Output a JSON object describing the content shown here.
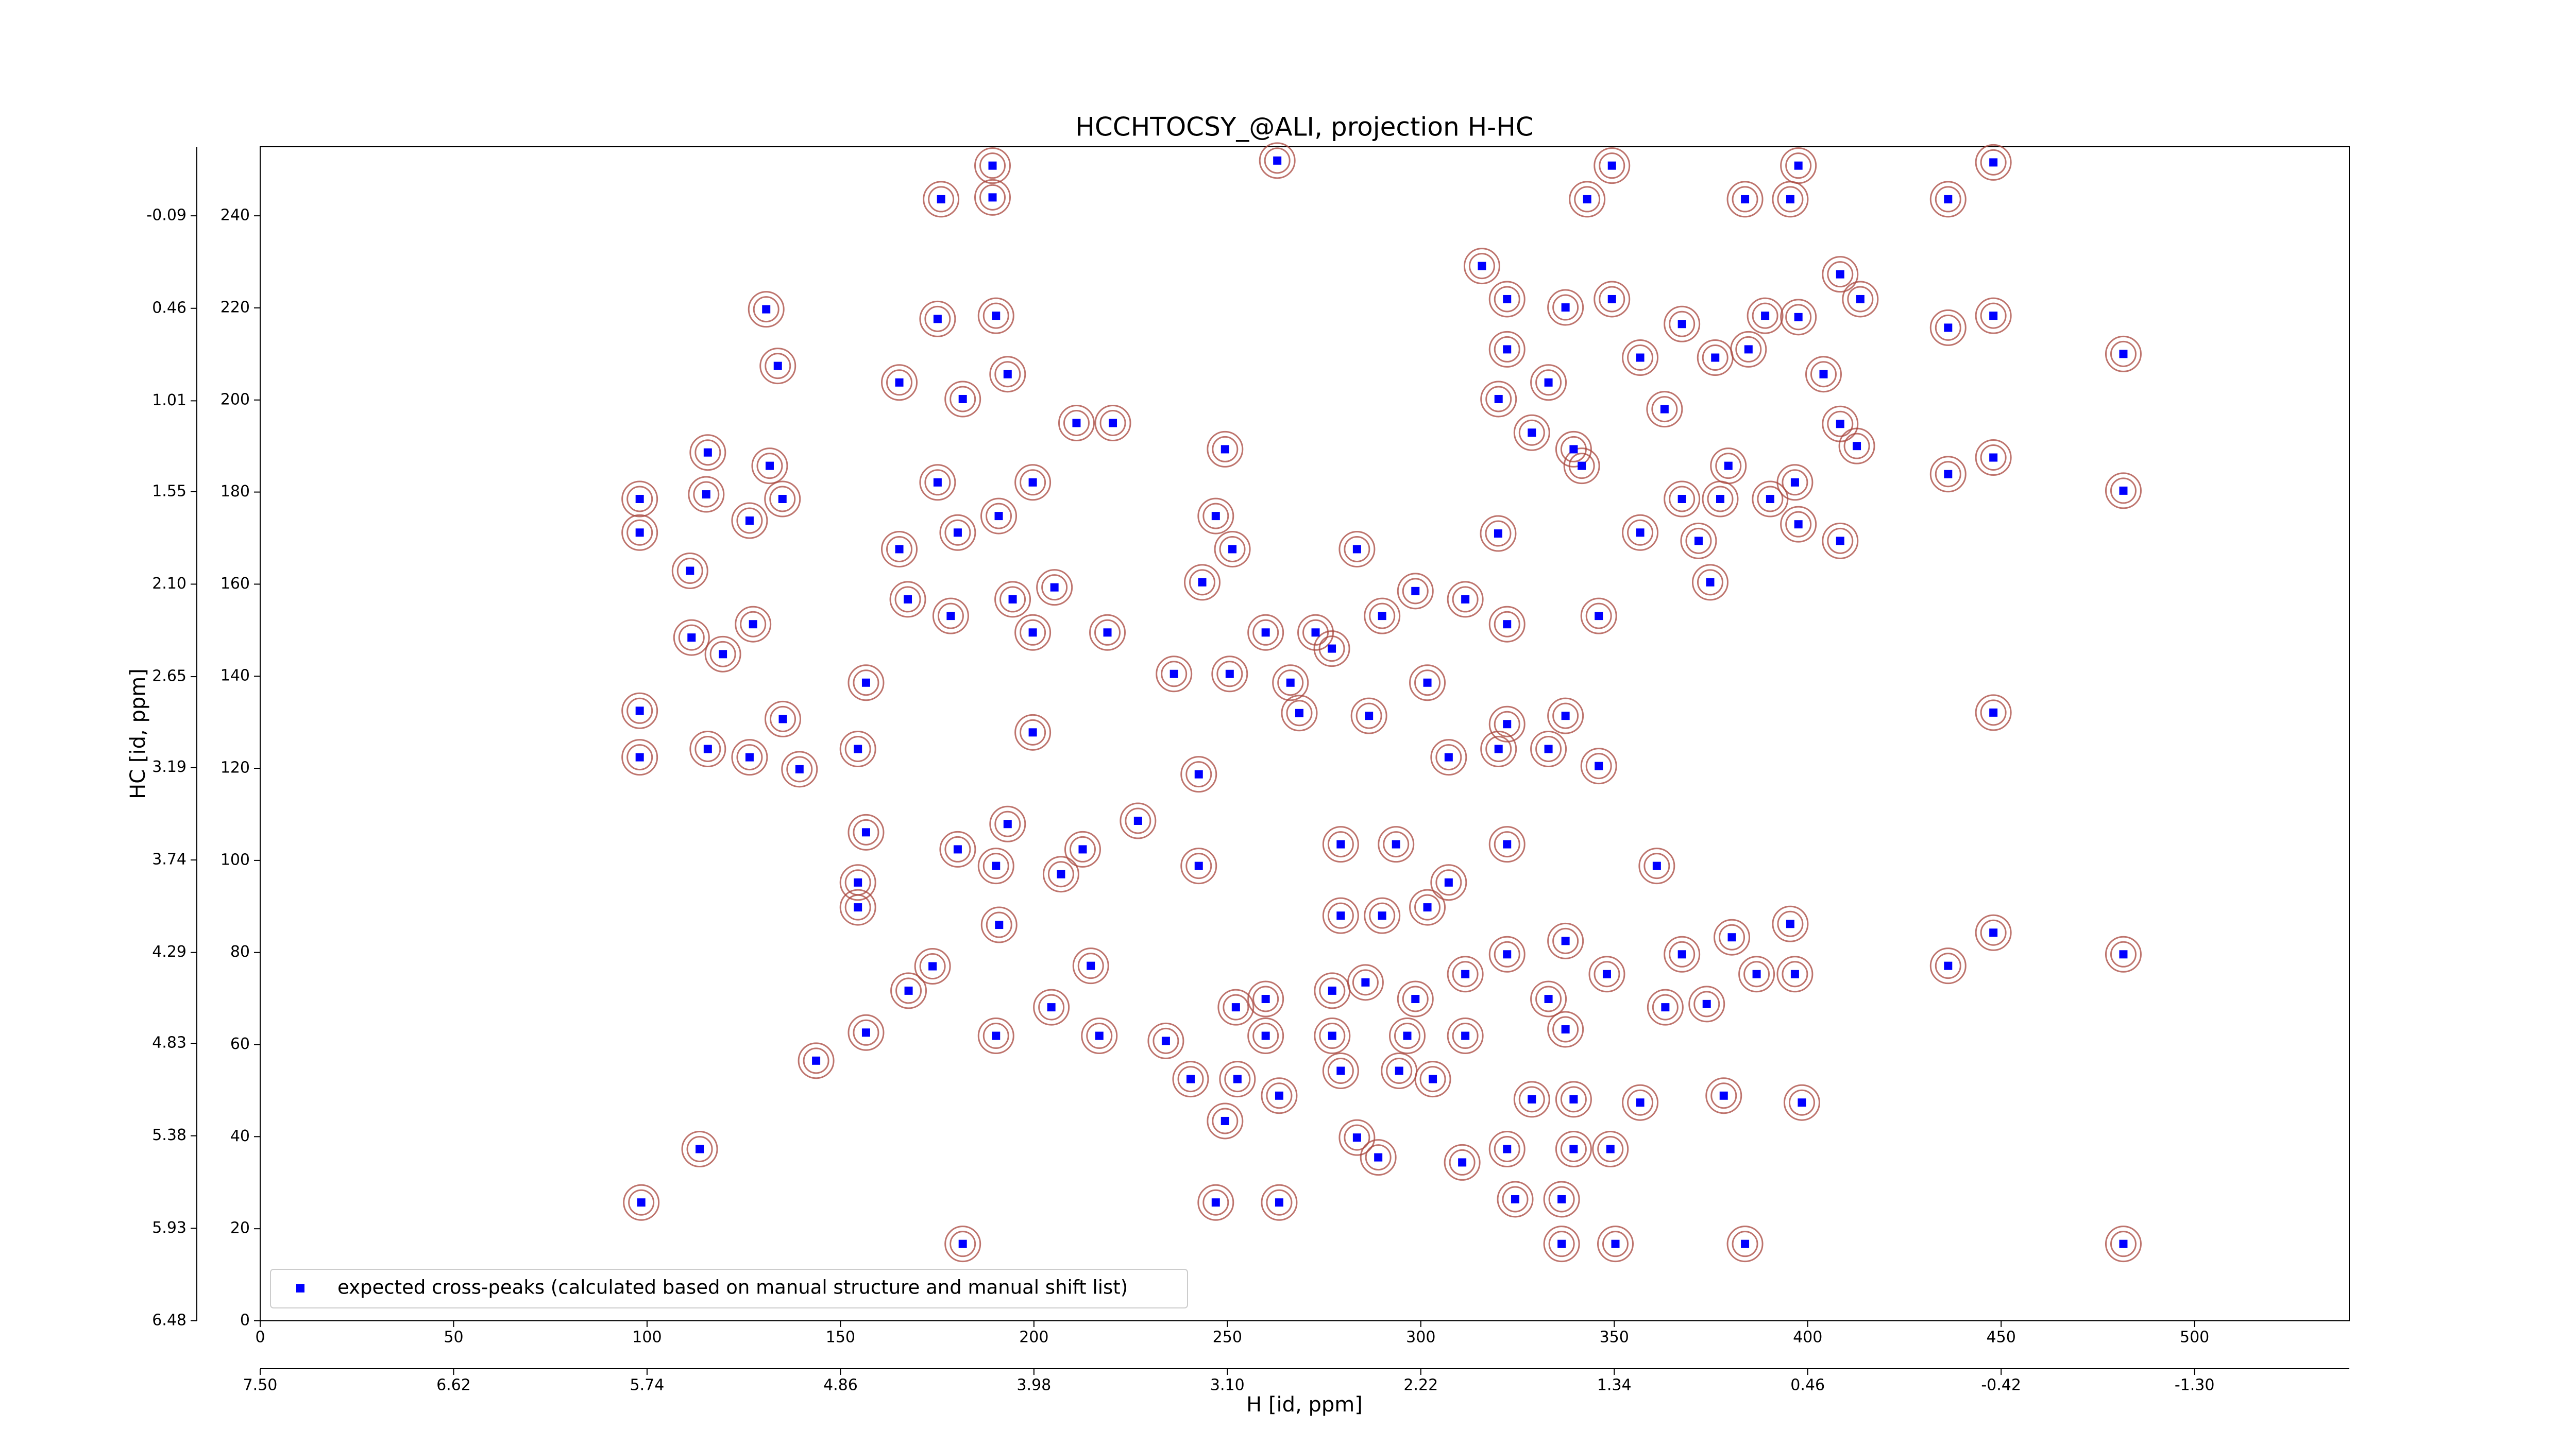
{
  "chart_data": {
    "type": "scatter",
    "title": "HCCHTOCSY_@ALI, projection H-HC",
    "xlabel": "H [id, ppm]",
    "ylabel": "HC [id, ppm]",
    "xlim": [
      0,
      540
    ],
    "xticks": [
      0,
      50,
      100,
      150,
      200,
      250,
      300,
      350,
      400,
      450,
      500
    ],
    "x2lim": [
      7.5,
      -2.004
    ],
    "x2ticks": [
      {
        "value": 7.5,
        "label": "7.50"
      },
      6.62,
      5.74,
      4.86,
      3.98,
      {
        "value": 3.1,
        "label": "3.10"
      },
      2.22,
      1.34,
      0.46,
      -0.42,
      {
        "value": -1.3,
        "label": "-1.30"
      }
    ],
    "ylim": [
      0,
      255
    ],
    "yticks": [
      0,
      20,
      40,
      60,
      80,
      100,
      120,
      140,
      160,
      180,
      200,
      220,
      240
    ],
    "y2lim": [
      6.48,
      -0.5006
    ],
    "y2ticks": [
      6.48,
      5.93,
      5.38,
      4.83,
      4.29,
      3.74,
      3.19,
      2.65,
      {
        "value": 2.1,
        "label": "2.10"
      },
      1.55,
      1.01,
      0.46,
      -0.09
    ],
    "legend": "lower left",
    "contour_color": "#a8453c",
    "series": [
      {
        "name": "expected cross-peaks (calculated based on manual structure and manual shift list)",
        "color": "#0000ff",
        "x": [
          98.5,
          113.6,
          143.7,
          156.6,
          173.8,
          191,
          212.6,
          242.6,
          268.6,
          277,
          298.6,
          320,
          341.6,
          363,
          384.7,
          397.6,
          176,
          189.3,
          189.3,
          262.9,
          349.4,
          343,
          383.8,
          395.5,
          397.6,
          448,
          436.3,
          130.8,
          133.8,
          165.2,
          175.1,
          181.6,
          190.2,
          193.2,
          211,
          220.4,
          115.7,
          115.3,
          98.1,
          98.1,
          131.7,
          135,
          126.5,
          111.1,
          111.5,
          119.6,
          127.4,
          98.1,
          98.1,
          115.7,
          126.5,
          135.1,
          139.4,
          154.5,
          156.6,
          165.2,
          175.1,
          180.3,
          190.9,
          199.7,
          194.5,
          199.7,
          205.3,
          199.7,
          167.4,
          178.5,
          249.4,
          247,
          251.3,
          243.5,
          219,
          236.2,
          250.6,
          315.8,
          322.3,
          337.4,
          349.4,
          322.3,
          333,
          320.1,
          328.7,
          339.5,
          356.7,
          367.5,
          376.1,
          389,
          408.4,
          413.6,
          404.1,
          408.4,
          412.7,
          396.7,
          390.3,
          379.5,
          377.4,
          367.5,
          371.8,
          374.8,
          397.6,
          408.4,
          356.7,
          346,
          322.3,
          311.5,
          290,
          283.5,
          272.8,
          259.9,
          266.3,
          286.6,
          301.7,
          436.3,
          436.3,
          448,
          448,
          448,
          481.6,
          481.6,
          481.6,
          481.6,
          448,
          436.3,
          307.2,
          320.1,
          333,
          346,
          322.3,
          337.4,
          279.3,
          293.6,
          307.2,
          322.3,
          361,
          279.3,
          290,
          301.7,
          322.3,
          337.4,
          348.1,
          367.5,
          380.4,
          395.5,
          396.7,
          386.8,
          373.9,
          363.2,
          333,
          311.5,
          298.6,
          285.7,
          277.1,
          259.9,
          252.2,
          216.9,
          234.1,
          259.9,
          277.1,
          296.5,
          311.5,
          337.4,
          240.5,
          252.6,
          263.4,
          279.3,
          294.4,
          303.1,
          328.7,
          339.5,
          356.7,
          378.3,
          398.5,
          283.5,
          289,
          310.7,
          322.3,
          339.5,
          349,
          324.4,
          336.4,
          336.4,
          350.3,
          383.8,
          181.6,
          263.4,
          247,
          249.4,
          214.7,
          190.2,
          204.5,
          167.6,
          154.5,
          156.6,
          180.3,
          190.2,
          193.2,
          207,
          242.6,
          226.9,
          154.5
        ],
        "y": [
          25.7,
          37.3,
          56.5,
          62.6,
          77,
          86,
          102.4,
          118.7,
          132,
          146,
          158.5,
          171,
          185.7,
          198,
          211,
          218,
          243.6,
          250.9,
          244,
          252,
          250.9,
          243.6,
          243.6,
          243.6,
          250.9,
          251.6,
          243.6,
          219.7,
          207.4,
          203.8,
          217.6,
          200.2,
          218.3,
          205.6,
          195,
          195,
          188.6,
          179.5,
          178.5,
          171.2,
          185.7,
          178.5,
          173.8,
          162.9,
          148.4,
          144.8,
          151.3,
          132.5,
          122.4,
          124.2,
          122.4,
          130.7,
          119.8,
          124.2,
          138.6,
          167.6,
          182.1,
          171.2,
          174.8,
          182.1,
          156.7,
          149.5,
          159.3,
          127.8,
          156.7,
          153.1,
          189.3,
          174.8,
          167.6,
          160.4,
          149.5,
          140.5,
          140.5,
          229.1,
          221.9,
          220.1,
          221.9,
          211,
          203.8,
          200.2,
          192.9,
          189.3,
          209.2,
          216.5,
          209.2,
          218.3,
          227.3,
          221.9,
          205.6,
          194.8,
          190,
          182.1,
          178.5,
          185.7,
          178.5,
          178.5,
          169.4,
          160.4,
          173,
          169.4,
          171.2,
          153.1,
          151.3,
          156.7,
          153.1,
          167.6,
          149.5,
          149.5,
          138.6,
          131.4,
          138.6,
          215.7,
          183.9,
          218.3,
          187.5,
          132.1,
          210,
          180.3,
          79.6,
          16.7,
          84.3,
          77.1,
          122.4,
          124.2,
          124.2,
          120.5,
          129.6,
          131.4,
          103.5,
          103.5,
          95.2,
          103.5,
          98.8,
          88,
          88,
          89.8,
          79.6,
          82.5,
          75.3,
          79.6,
          83.3,
          86.2,
          75.3,
          75.3,
          68.8,
          68.1,
          69.9,
          75.3,
          69.9,
          73.5,
          71.7,
          69.9,
          68.1,
          61.9,
          60.8,
          61.9,
          61.9,
          61.9,
          61.9,
          63.3,
          52.5,
          52.5,
          48.9,
          54.3,
          54.3,
          52.5,
          48.1,
          48.1,
          47.4,
          48.9,
          47.4,
          39.8,
          35.5,
          34.4,
          37.3,
          37.3,
          37.3,
          26.4,
          26.4,
          16.7,
          16.7,
          16.7,
          16.7,
          25.7,
          25.7,
          43.4,
          77.1,
          61.9,
          68.1,
          71.7,
          95.2,
          106.1,
          102.4,
          98.8,
          107.9,
          97,
          98.8,
          108.6,
          89.8
        ]
      }
    ]
  }
}
